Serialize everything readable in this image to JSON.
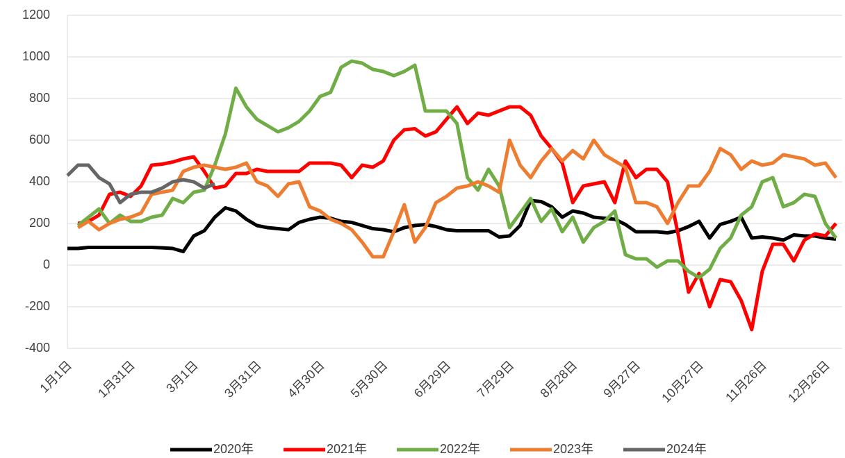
{
  "chart_data": {
    "type": "line",
    "categories": [
      "1月1日",
      null,
      null,
      null,
      null,
      null,
      "1月31日",
      null,
      null,
      null,
      null,
      null,
      "3月1日",
      null,
      null,
      null,
      null,
      null,
      "3月31日",
      null,
      null,
      null,
      null,
      null,
      "4月30日",
      null,
      null,
      null,
      null,
      null,
      "5月30日",
      null,
      null,
      null,
      null,
      null,
      "6月29日",
      null,
      null,
      null,
      null,
      null,
      "7月29日",
      null,
      null,
      null,
      null,
      null,
      "8月28日",
      null,
      null,
      null,
      null,
      null,
      "9月27日",
      null,
      null,
      null,
      null,
      null,
      "10月27日",
      null,
      null,
      null,
      null,
      null,
      "11月26日",
      null,
      null,
      null,
      null,
      null,
      "12月26日",
      null
    ],
    "series": [
      {
        "name": "2020年",
        "color": "#000000",
        "values": [
          80,
          80,
          85,
          85,
          85,
          85,
          85,
          85,
          85,
          83,
          80,
          65,
          140,
          165,
          230,
          275,
          260,
          220,
          190,
          180,
          175,
          170,
          205,
          220,
          230,
          225,
          210,
          205,
          190,
          175,
          170,
          160,
          180,
          190,
          195,
          185,
          170,
          165,
          165,
          165,
          165,
          135,
          140,
          190,
          310,
          305,
          280,
          230,
          260,
          250,
          230,
          225,
          220,
          195,
          160,
          160,
          160,
          155,
          165,
          185,
          210,
          130,
          195,
          210,
          230,
          130,
          135,
          130,
          120,
          145,
          140,
          140,
          130,
          125
        ]
      },
      {
        "name": "2021年",
        "color": "#ff0000",
        "values": [
          null,
          200,
          210,
          240,
          340,
          350,
          330,
          380,
          480,
          485,
          495,
          510,
          520,
          450,
          370,
          380,
          440,
          440,
          460,
          450,
          450,
          450,
          450,
          490,
          490,
          490,
          480,
          420,
          480,
          470,
          500,
          600,
          650,
          655,
          620,
          640,
          700,
          760,
          680,
          730,
          720,
          740,
          760,
          760,
          720,
          620,
          560,
          490,
          300,
          380,
          390,
          400,
          300,
          500,
          420,
          460,
          460,
          400,
          150,
          -130,
          -40,
          -200,
          -70,
          -80,
          -170,
          -310,
          -30,
          100,
          100,
          20,
          120,
          150,
          140,
          200
        ]
      },
      {
        "name": "2022年",
        "color": "#70ad47",
        "values": [
          null,
          190,
          230,
          270,
          200,
          240,
          210,
          210,
          230,
          240,
          320,
          300,
          350,
          360,
          480,
          630,
          850,
          760,
          700,
          670,
          640,
          660,
          690,
          740,
          810,
          830,
          950,
          980,
          970,
          940,
          930,
          910,
          930,
          960,
          740,
          740,
          740,
          680,
          420,
          360,
          460,
          380,
          180,
          250,
          320,
          210,
          270,
          160,
          230,
          110,
          180,
          210,
          260,
          50,
          30,
          30,
          -10,
          20,
          20,
          -30,
          -60,
          -20,
          80,
          130,
          240,
          280,
          400,
          420,
          280,
          300,
          340,
          330,
          200,
          130
        ]
      },
      {
        "name": "2023年",
        "color": "#ed7d31",
        "values": [
          null,
          180,
          210,
          170,
          200,
          220,
          230,
          250,
          340,
          350,
          360,
          450,
          470,
          480,
          470,
          460,
          470,
          490,
          400,
          380,
          330,
          390,
          400,
          280,
          260,
          220,
          200,
          170,
          110,
          40,
          40,
          160,
          290,
          110,
          180,
          300,
          330,
          370,
          380,
          400,
          380,
          350,
          600,
          480,
          420,
          500,
          560,
          500,
          550,
          510,
          600,
          530,
          500,
          470,
          300,
          300,
          280,
          200,
          300,
          380,
          380,
          450,
          560,
          530,
          460,
          500,
          480,
          490,
          530,
          520,
          510,
          480,
          490,
          420
        ]
      },
      {
        "name": "2024年",
        "color": "#666666",
        "values": [
          430,
          480,
          480,
          420,
          390,
          300,
          340,
          350,
          350,
          370,
          400,
          410,
          400,
          370,
          390,
          null,
          null,
          null,
          null,
          null,
          null,
          null,
          null,
          null,
          null,
          null,
          null,
          null,
          null,
          null,
          null,
          null,
          null,
          null,
          null,
          null,
          null,
          null,
          null,
          null,
          null,
          null,
          null,
          null,
          null,
          null,
          null,
          null,
          null,
          null,
          null,
          null,
          null,
          null,
          null,
          null,
          null,
          null,
          null,
          null,
          null,
          null,
          null,
          null,
          null,
          null,
          null,
          null,
          null,
          null,
          null,
          null,
          null,
          null
        ]
      }
    ],
    "ylim": [
      -400,
      1200
    ],
    "yticks": [
      -400,
      -200,
      0,
      200,
      400,
      600,
      800,
      1000,
      1200
    ],
    "grid": true,
    "legend": "bottom"
  }
}
